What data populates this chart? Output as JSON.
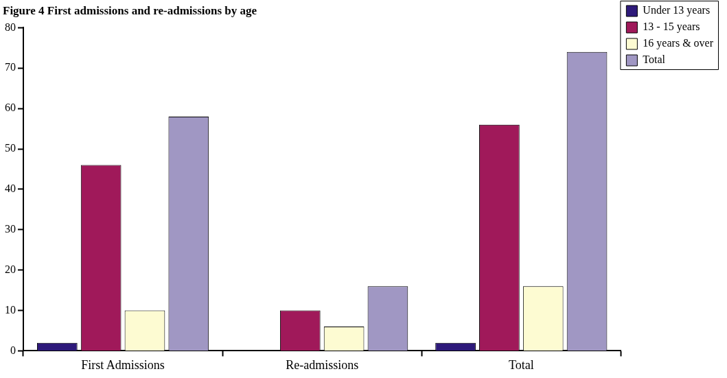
{
  "chart_data": {
    "type": "bar",
    "title": "Figure 4 First admissions and re-admissions by age",
    "categories": [
      "First Admissions",
      "Re-admissions",
      "Total"
    ],
    "series": [
      {
        "name": "Under 13 years",
        "color": "#2e1a7a",
        "values": [
          2,
          0,
          2
        ]
      },
      {
        "name": "13 - 15 years",
        "color": "#a0195a",
        "values": [
          46,
          10,
          56
        ]
      },
      {
        "name": "16 years & over",
        "color": "#fdfbd2",
        "values": [
          10,
          6,
          16
        ]
      },
      {
        "name": "Total",
        "color": "#a097c3",
        "values": [
          58,
          16,
          74
        ]
      }
    ],
    "ylim": [
      0,
      80
    ],
    "yticks": [
      0,
      10,
      20,
      30,
      40,
      50,
      60,
      70,
      80
    ],
    "grid": false,
    "legend": "top right"
  }
}
